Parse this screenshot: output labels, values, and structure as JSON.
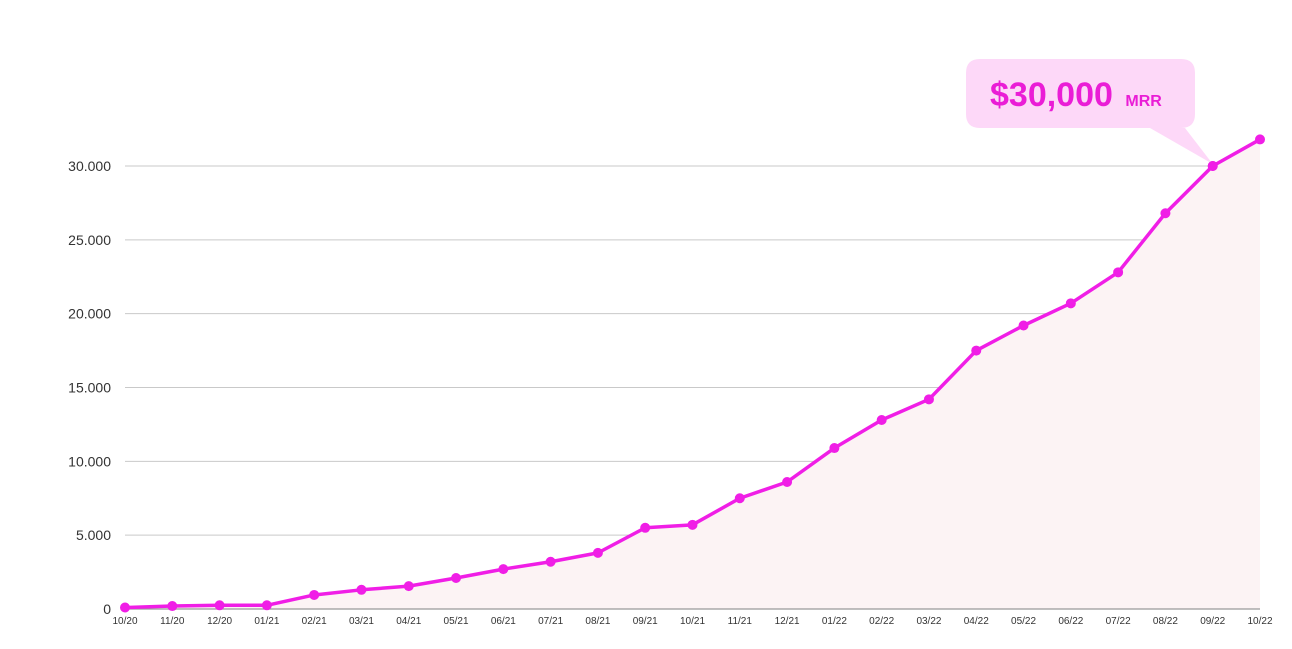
{
  "chart_data": {
    "type": "area",
    "categories": [
      "10/20",
      "11/20",
      "12/20",
      "01/21",
      "02/21",
      "03/21",
      "04/21",
      "05/21",
      "06/21",
      "07/21",
      "08/21",
      "09/21",
      "10/21",
      "11/21",
      "12/21",
      "01/22",
      "02/22",
      "03/22",
      "04/22",
      "05/22",
      "06/22",
      "07/22",
      "08/22",
      "09/22",
      "10/22"
    ],
    "values": [
      100,
      200,
      250,
      250,
      950,
      1300,
      1550,
      2100,
      2700,
      3200,
      3800,
      5500,
      5700,
      7500,
      8600,
      10900,
      12800,
      14200,
      17500,
      19200,
      20700,
      22800,
      26800,
      30000,
      31800
    ],
    "ylim": [
      0,
      30000
    ],
    "yticks": [
      0,
      5000,
      10000,
      15000,
      20000,
      25000,
      30000
    ],
    "ytick_labels": [
      "0",
      "5.000",
      "10.000",
      "15.000",
      "20.000",
      "25.000",
      "30.000"
    ],
    "grid": true,
    "annotation": {
      "value_text": "$30,000",
      "unit_text": "MRR",
      "category": "09/22"
    }
  },
  "colors": {
    "line": "#f01ee6",
    "marker": "#f01ee6",
    "area_fill": "#fcf3f4",
    "callout_bg": "#fdd8f8",
    "callout_text": "#ea1dd6"
  }
}
